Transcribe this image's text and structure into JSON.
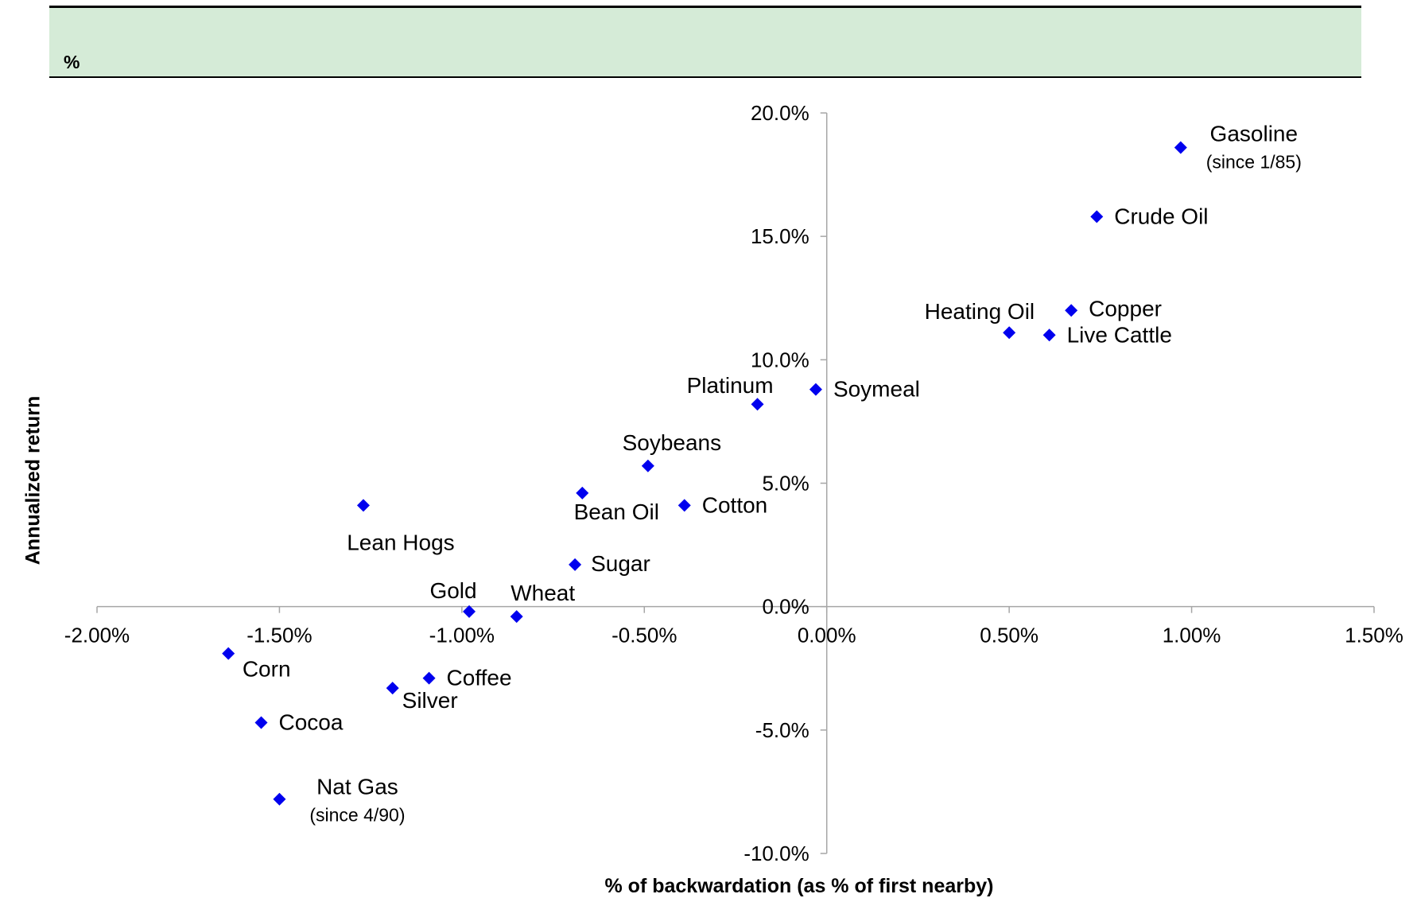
{
  "header": {
    "unit_label": "%"
  },
  "chart_data": {
    "type": "scatter",
    "title": "",
    "xlabel": "% of backwardation (as % of first nearby)",
    "ylabel": "Annualized return",
    "xlim": [
      -2.0,
      1.5
    ],
    "ylim": [
      -10.0,
      20.0
    ],
    "x_ticks": [
      "-2.00%",
      "-1.50%",
      "-1.00%",
      "-0.50%",
      "0.00%",
      "0.50%",
      "1.00%",
      "1.50%"
    ],
    "y_ticks": [
      "20.0%",
      "15.0%",
      "10.0%",
      "5.0%",
      "0.0%",
      "-5.0%",
      "-10.0%"
    ],
    "grid": false,
    "marker_color": "#0000ee",
    "points": [
      {
        "name": "Gasoline",
        "note": "(since 1/85)",
        "x": 0.97,
        "y": 18.6
      },
      {
        "name": "Crude Oil",
        "note": "",
        "x": 0.74,
        "y": 15.8
      },
      {
        "name": "Copper",
        "note": "",
        "x": 0.67,
        "y": 12.0
      },
      {
        "name": "Heating Oil",
        "note": "",
        "x": 0.5,
        "y": 11.1
      },
      {
        "name": "Live Cattle",
        "note": "",
        "x": 0.61,
        "y": 11.0
      },
      {
        "name": "Soymeal",
        "note": "",
        "x": -0.03,
        "y": 8.8
      },
      {
        "name": "Platinum",
        "note": "",
        "x": -0.19,
        "y": 8.2
      },
      {
        "name": "Soybeans",
        "note": "",
        "x": -0.49,
        "y": 5.7
      },
      {
        "name": "Bean Oil",
        "note": "",
        "x": -0.67,
        "y": 4.6
      },
      {
        "name": "Cotton",
        "note": "",
        "x": -0.39,
        "y": 4.1
      },
      {
        "name": "Lean Hogs",
        "note": "",
        "x": -1.27,
        "y": 4.1
      },
      {
        "name": "Sugar",
        "note": "",
        "x": -0.69,
        "y": 1.7
      },
      {
        "name": "Gold",
        "note": "",
        "x": -0.98,
        "y": -0.2
      },
      {
        "name": "Wheat",
        "note": "",
        "x": -0.85,
        "y": -0.4
      },
      {
        "name": "Corn",
        "note": "",
        "x": -1.64,
        "y": -1.9
      },
      {
        "name": "Coffee",
        "note": "",
        "x": -1.09,
        "y": -2.9
      },
      {
        "name": "Silver",
        "note": "",
        "x": -1.19,
        "y": -3.3
      },
      {
        "name": "Cocoa",
        "note": "",
        "x": -1.55,
        "y": -4.7
      },
      {
        "name": "Nat Gas",
        "note": "(since 4/90)",
        "x": -1.5,
        "y": -7.8
      }
    ]
  }
}
